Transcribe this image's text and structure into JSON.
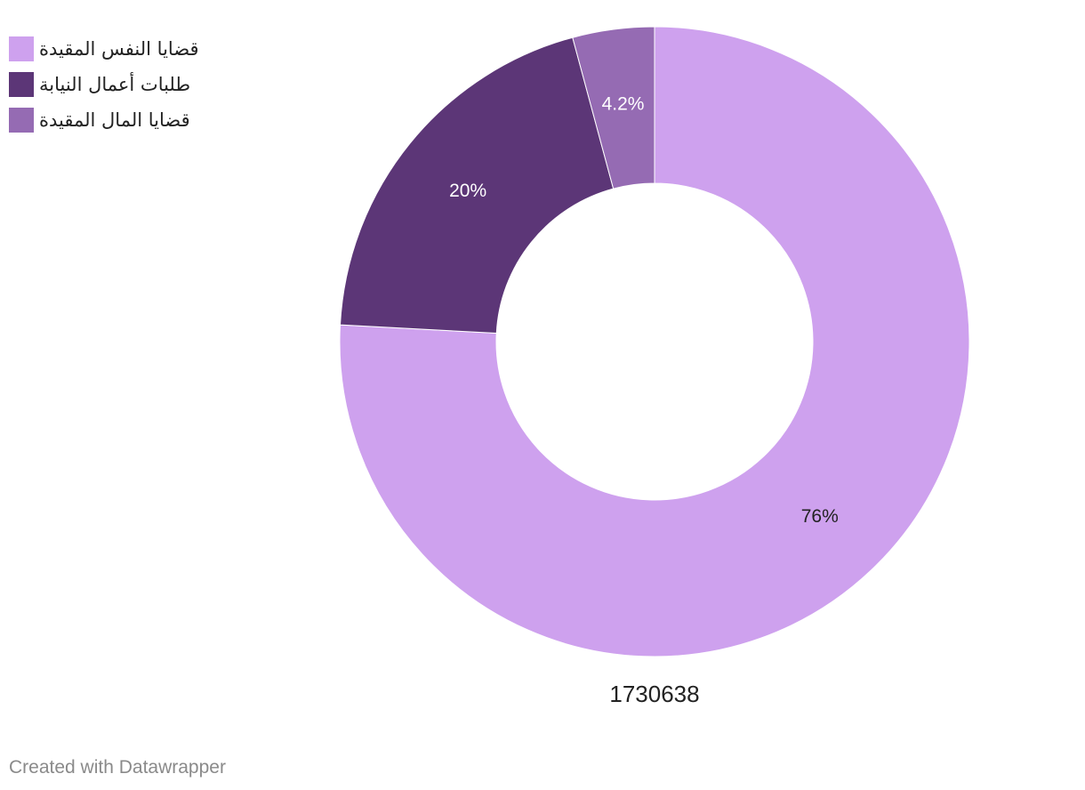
{
  "chart_data": {
    "type": "pie",
    "donut": true,
    "categories": [
      "قضايا النفس المقيدة",
      "طلبات أعمال النيابة",
      "قضايا المال المقيدة"
    ],
    "values": [
      76,
      20,
      4.2
    ],
    "value_labels": [
      "76%",
      "20%",
      "4.2%"
    ],
    "center_label": "1730638",
    "colors": [
      "#cea1ee",
      "#5c3677",
      "#956bb3"
    ],
    "label_colors": [
      "#222222",
      "#ffffff",
      "#ffffff"
    ],
    "legend_position": "top-left"
  },
  "footer": {
    "credit": "Created with Datawrapper"
  }
}
